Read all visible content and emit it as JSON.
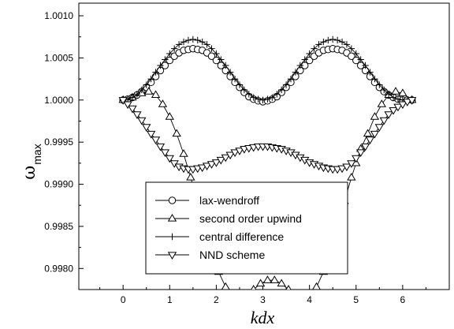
{
  "chart_data": {
    "type": "line",
    "title": "",
    "xlabel": "kdx",
    "ylabel": "ω",
    "ylabel_subscript": "max",
    "xlim": [
      -0.95,
      7.0
    ],
    "ylim": [
      0.99775,
      1.00115
    ],
    "x_ticks": [
      "0",
      "1",
      "2",
      "3",
      "4",
      "5",
      "6"
    ],
    "y_ticks": [
      "0.9980",
      "0.9985",
      "0.9990",
      "0.9995",
      "1.0000",
      "1.0005",
      "1.0010"
    ],
    "legend_position": "bottom-center",
    "grid": false,
    "series": [
      {
        "name": "lax-wendroff",
        "marker": "circle",
        "x": [
          0.0,
          0.1,
          0.2,
          0.3,
          0.4,
          0.5,
          0.6,
          0.7,
          0.8,
          0.9,
          1.0,
          1.1,
          1.2,
          1.3,
          1.4,
          1.5,
          1.6,
          1.7,
          1.8,
          1.9,
          2.0,
          2.1,
          2.2,
          2.3,
          2.4,
          2.5,
          2.6,
          2.7,
          2.8,
          2.9,
          3.0,
          3.1,
          3.2,
          3.3,
          3.4,
          3.5,
          3.6,
          3.7,
          3.8,
          3.9,
          4.0,
          4.1,
          4.2,
          4.3,
          4.4,
          4.5,
          4.6,
          4.7,
          4.8,
          4.9,
          5.0,
          5.1,
          5.2,
          5.3,
          5.4,
          5.5,
          5.6,
          5.7,
          5.8,
          5.9,
          6.0,
          6.1,
          6.2
        ],
        "y": [
          1.0,
          1.00001,
          1.00003,
          1.00006,
          1.0001,
          1.00015,
          1.00021,
          1.00028,
          1.00035,
          1.00041,
          1.00047,
          1.00052,
          1.00056,
          1.00059,
          1.0006,
          1.00061,
          1.0006,
          1.00059,
          1.00056,
          1.00052,
          1.00047,
          1.00041,
          1.00035,
          1.00028,
          1.00021,
          1.00015,
          1.00009,
          1.00004,
          1.00001,
          0.99999,
          0.99998,
          0.99999,
          1.00001,
          1.00004,
          1.00009,
          1.00015,
          1.00021,
          1.00028,
          1.00035,
          1.00041,
          1.00047,
          1.00052,
          1.00056,
          1.00059,
          1.0006,
          1.00061,
          1.0006,
          1.00059,
          1.00056,
          1.00052,
          1.00047,
          1.00041,
          1.00035,
          1.00028,
          1.00021,
          1.00015,
          1.0001,
          1.00006,
          1.00003,
          1.00001,
          1.0,
          1.0,
          1.0
        ]
      },
      {
        "name": "second order upwind",
        "marker": "triangle-up",
        "x": [
          0.0,
          0.2,
          0.4,
          0.55,
          0.7,
          0.85,
          1.0,
          1.15,
          1.3,
          1.45,
          1.6,
          1.75,
          1.9,
          2.05,
          2.2,
          2.35,
          2.5,
          2.65,
          2.8,
          2.95,
          3.1,
          3.25,
          3.4,
          3.55,
          3.7,
          3.85,
          4.0,
          4.15,
          4.3,
          4.45,
          4.6,
          4.75,
          4.9,
          5.0,
          5.1,
          5.25,
          5.4,
          5.55,
          5.7,
          5.85,
          6.0,
          6.2
        ],
        "y": [
          1.0,
          1.00003,
          1.00008,
          1.0001,
          1.00006,
          0.99995,
          0.9998,
          0.9996,
          0.99936,
          0.99908,
          0.9988,
          0.9985,
          0.99822,
          0.99796,
          0.99778,
          0.99768,
          0.99765,
          0.99768,
          0.99775,
          0.99782,
          0.99786,
          0.99786,
          0.99782,
          0.99775,
          0.99768,
          0.99765,
          0.99768,
          0.99778,
          0.99796,
          0.99822,
          0.9985,
          0.9988,
          0.99908,
          0.99925,
          0.99942,
          0.9996,
          0.9998,
          0.99995,
          1.00006,
          1.0001,
          1.00008,
          1.0
        ]
      },
      {
        "name": "central difference",
        "marker": "plus",
        "x": [
          0.0,
          0.1,
          0.2,
          0.3,
          0.4,
          0.5,
          0.6,
          0.7,
          0.8,
          0.9,
          1.0,
          1.1,
          1.2,
          1.3,
          1.4,
          1.5,
          1.6,
          1.7,
          1.8,
          1.9,
          2.0,
          2.1,
          2.2,
          2.3,
          2.4,
          2.5,
          2.6,
          2.7,
          2.8,
          2.9,
          3.0,
          3.1,
          3.2,
          3.3,
          3.4,
          3.5,
          3.6,
          3.7,
          3.8,
          3.9,
          4.0,
          4.1,
          4.2,
          4.3,
          4.4,
          4.5,
          4.6,
          4.7,
          4.8,
          4.9,
          5.0,
          5.1,
          5.2,
          5.3,
          5.4,
          5.5,
          5.6,
          5.7,
          5.8,
          5.9,
          6.0,
          6.1,
          6.2
        ],
        "y": [
          1.0,
          1.00001,
          1.00003,
          1.00007,
          1.00012,
          1.00018,
          1.00025,
          1.00033,
          1.00041,
          1.00048,
          1.00055,
          1.00061,
          1.00066,
          1.00069,
          1.00071,
          1.00072,
          1.00071,
          1.00069,
          1.00066,
          1.00061,
          1.00055,
          1.00048,
          1.00041,
          1.00033,
          1.00025,
          1.00018,
          1.00012,
          1.00007,
          1.00003,
          1.00001,
          1.0,
          1.00001,
          1.00003,
          1.00007,
          1.00012,
          1.00018,
          1.00025,
          1.00033,
          1.00041,
          1.00048,
          1.00055,
          1.00061,
          1.00066,
          1.00069,
          1.00071,
          1.00072,
          1.00071,
          1.00069,
          1.00066,
          1.00061,
          1.00055,
          1.00048,
          1.00041,
          1.00033,
          1.00025,
          1.00018,
          1.00012,
          1.00007,
          1.00003,
          1.00001,
          1.0,
          1.0,
          1.0
        ]
      },
      {
        "name": "NND scheme",
        "marker": "triangle-down",
        "x": [
          0.0,
          0.1,
          0.2,
          0.3,
          0.4,
          0.5,
          0.6,
          0.7,
          0.8,
          0.9,
          1.0,
          1.1,
          1.2,
          1.3,
          1.4,
          1.5,
          1.6,
          1.7,
          1.8,
          1.9,
          2.0,
          2.1,
          2.2,
          2.3,
          2.4,
          2.5,
          2.6,
          2.7,
          2.8,
          2.9,
          3.0,
          3.1,
          3.2,
          3.3,
          3.4,
          3.5,
          3.6,
          3.7,
          3.8,
          3.9,
          4.0,
          4.1,
          4.2,
          4.3,
          4.4,
          4.5,
          4.6,
          4.7,
          4.8,
          4.9,
          5.0,
          5.1,
          5.2,
          5.3,
          5.4,
          5.5,
          5.6,
          5.7,
          5.8,
          5.9,
          6.0,
          6.1,
          6.2
        ],
        "y": [
          1.0,
          0.99995,
          0.9999,
          0.99983,
          0.99976,
          0.99968,
          0.9996,
          0.99953,
          0.99945,
          0.99938,
          0.99931,
          0.99925,
          0.99921,
          0.99919,
          0.99918,
          0.99918,
          0.99919,
          0.9992,
          0.99922,
          0.99924,
          0.99926,
          0.99929,
          0.99932,
          0.99935,
          0.99938,
          0.9994,
          0.99942,
          0.99943,
          0.99944,
          0.99945,
          0.99945,
          0.99945,
          0.99944,
          0.99943,
          0.99942,
          0.9994,
          0.99938,
          0.99935,
          0.99932,
          0.99929,
          0.99926,
          0.99924,
          0.99922,
          0.9992,
          0.99919,
          0.99918,
          0.99918,
          0.99919,
          0.99921,
          0.99925,
          0.99931,
          0.99938,
          0.99945,
          0.99953,
          0.9996,
          0.99968,
          0.99976,
          0.99983,
          0.99988,
          0.99992,
          0.99995,
          0.99998,
          1.0
        ]
      }
    ]
  }
}
